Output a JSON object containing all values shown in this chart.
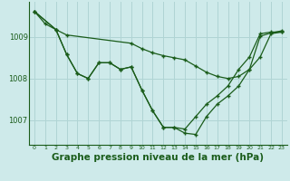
{
  "bg_color": "#ceeaea",
  "grid_color": "#b0d4d4",
  "line_color": "#1a5c1a",
  "xlabel": "Graphe pression niveau de la mer (hPa)",
  "xlabel_fontsize": 7.5,
  "yticks": [
    1007,
    1008,
    1009
  ],
  "ylim": [
    1006.4,
    1009.85
  ],
  "xlim": [
    -0.5,
    23.5
  ],
  "xticks": [
    0,
    1,
    2,
    3,
    4,
    5,
    6,
    7,
    8,
    9,
    10,
    11,
    12,
    13,
    14,
    15,
    16,
    17,
    18,
    19,
    20,
    21,
    22,
    23
  ],
  "series1_x": [
    0,
    1,
    2,
    3,
    4,
    5,
    6,
    7,
    8,
    9,
    10,
    11,
    12,
    13,
    14,
    15,
    16,
    17,
    18,
    19,
    20,
    21,
    22,
    23
  ],
  "series1_y": [
    1009.62,
    1009.32,
    1009.18,
    1008.58,
    1008.12,
    1008.0,
    1008.38,
    1008.38,
    1008.22,
    1008.28,
    1007.72,
    1007.22,
    1006.82,
    1006.82,
    1006.78,
    1007.08,
    1007.38,
    1007.58,
    1007.82,
    1008.22,
    1008.52,
    1009.08,
    1009.12,
    1009.12
  ],
  "series2_x": [
    0,
    2,
    3,
    9,
    10,
    11,
    12,
    13,
    14,
    15,
    16,
    17,
    18,
    19,
    20,
    21,
    22,
    23
  ],
  "series2_y": [
    1009.62,
    1009.18,
    1009.05,
    1008.85,
    1008.72,
    1008.62,
    1008.55,
    1008.5,
    1008.45,
    1008.3,
    1008.15,
    1008.05,
    1008.0,
    1008.05,
    1008.22,
    1009.02,
    1009.1,
    1009.15
  ],
  "series3_x": [
    0,
    2,
    3,
    4,
    5,
    6,
    7,
    8,
    9,
    10,
    11,
    12,
    13,
    14,
    15,
    16,
    17,
    18,
    19,
    20,
    21,
    22,
    23
  ],
  "series3_y": [
    1009.62,
    1009.18,
    1008.58,
    1008.12,
    1008.0,
    1008.38,
    1008.38,
    1008.22,
    1008.28,
    1007.72,
    1007.22,
    1006.82,
    1006.82,
    1006.68,
    1006.65,
    1007.08,
    1007.38,
    1007.58,
    1007.82,
    1008.22,
    1008.52,
    1009.08,
    1009.12
  ]
}
